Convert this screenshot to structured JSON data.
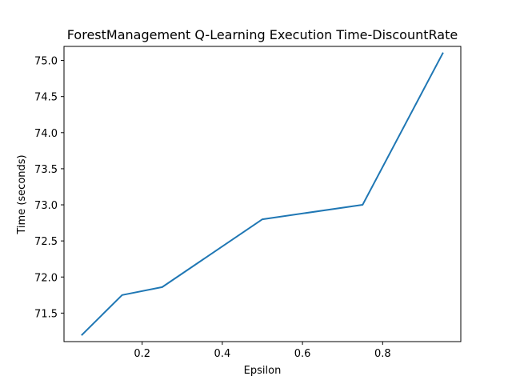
{
  "chart_data": {
    "type": "line",
    "title": "ForestManagement Q-Learning Execution Time-DiscountRate",
    "xlabel": "Epsilon",
    "ylabel": "Time (seconds)",
    "xlim": [
      0.005,
      0.995
    ],
    "ylim": [
      71.105,
      75.195
    ],
    "xticks": [
      0.2,
      0.4,
      0.6,
      0.8
    ],
    "xtick_labels": [
      "0.2",
      "0.4",
      "0.6",
      "0.8"
    ],
    "yticks": [
      71.5,
      72.0,
      72.5,
      73.0,
      73.5,
      74.0,
      74.5,
      75.0
    ],
    "ytick_labels": [
      "71.5",
      "72.0",
      "72.5",
      "73.0",
      "73.5",
      "74.0",
      "74.5",
      "75.0"
    ],
    "grid": false,
    "series": [
      {
        "color": "#1f77b4",
        "x": [
          0.05,
          0.15,
          0.25,
          0.5,
          0.75,
          0.95
        ],
        "y": [
          71.2,
          71.75,
          71.86,
          72.8,
          73.0,
          75.1
        ]
      }
    ]
  }
}
